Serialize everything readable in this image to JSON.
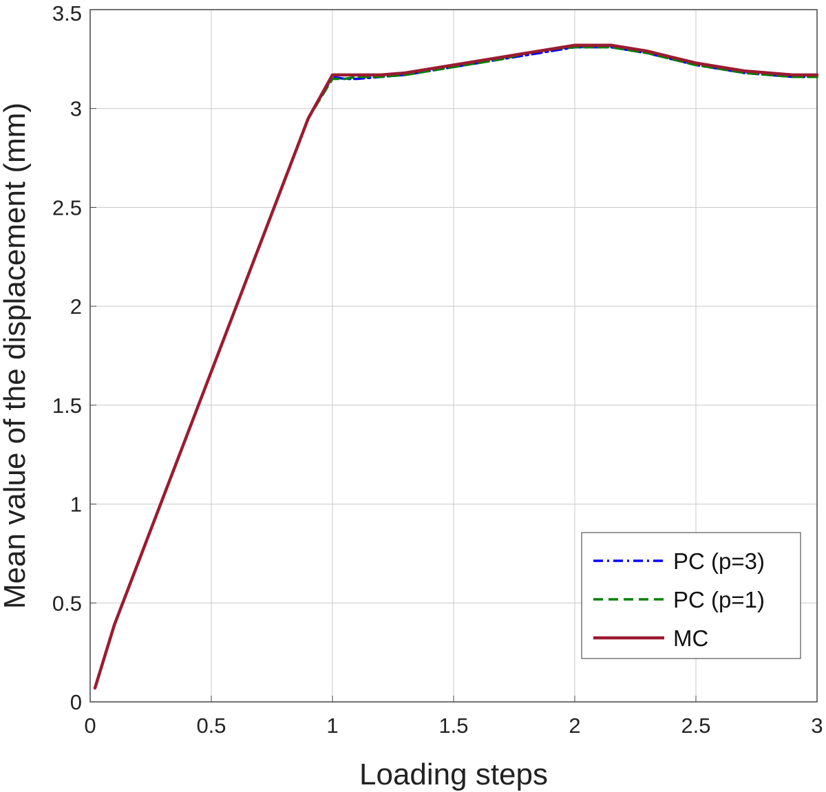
{
  "chart_data": {
    "type": "line",
    "title": "",
    "xlabel": "Loading steps",
    "ylabel": "Mean value of the displacement (mm)",
    "xlim": [
      0,
      3
    ],
    "ylim": [
      0,
      3.5
    ],
    "xticks": [
      "0",
      "0.5",
      "1",
      "1.5",
      "2",
      "2.5",
      "3"
    ],
    "yticks": [
      "0",
      "0.5",
      "1",
      "1.5",
      "2",
      "2.5",
      "3",
      "3.5"
    ],
    "grid": true,
    "legend_position": "bottom-right",
    "series": [
      {
        "name": "PC (p=3)",
        "color": "#0000ff",
        "style": "dashdot",
        "x": [
          0.02,
          0.1,
          0.2,
          0.3,
          0.4,
          0.5,
          0.6,
          0.7,
          0.8,
          0.9,
          1.0,
          1.05,
          1.1,
          1.2,
          1.3,
          1.4,
          1.5,
          1.6,
          1.7,
          1.8,
          1.9,
          2.0,
          2.1,
          2.15,
          2.2,
          2.3,
          2.4,
          2.5,
          2.6,
          2.7,
          2.8,
          2.9,
          3.0
        ],
        "y": [
          0.07,
          0.39,
          0.71,
          1.03,
          1.35,
          1.67,
          1.99,
          2.31,
          2.63,
          2.95,
          3.16,
          3.15,
          3.15,
          3.16,
          3.17,
          3.19,
          3.21,
          3.23,
          3.25,
          3.27,
          3.29,
          3.31,
          3.31,
          3.31,
          3.3,
          3.28,
          3.25,
          3.22,
          3.2,
          3.18,
          3.17,
          3.16,
          3.16
        ]
      },
      {
        "name": "PC (p=1)",
        "color": "#008000",
        "style": "dashed",
        "x": [
          0.02,
          0.1,
          0.2,
          0.3,
          0.4,
          0.5,
          0.6,
          0.7,
          0.8,
          0.9,
          1.0,
          1.05,
          1.1,
          1.2,
          1.3,
          1.4,
          1.5,
          1.6,
          1.7,
          1.8,
          1.9,
          2.0,
          2.1,
          2.15,
          2.2,
          2.3,
          2.4,
          2.5,
          2.6,
          2.7,
          2.8,
          2.9,
          3.0
        ],
        "y": [
          0.07,
          0.39,
          0.71,
          1.03,
          1.35,
          1.67,
          1.99,
          2.31,
          2.63,
          2.95,
          3.15,
          3.15,
          3.16,
          3.16,
          3.17,
          3.19,
          3.21,
          3.23,
          3.25,
          3.28,
          3.3,
          3.31,
          3.31,
          3.31,
          3.3,
          3.28,
          3.25,
          3.22,
          3.2,
          3.18,
          3.17,
          3.16,
          3.16
        ]
      },
      {
        "name": "MC",
        "color": "#9b1b30",
        "style": "solid",
        "x": [
          0.02,
          0.1,
          0.2,
          0.3,
          0.4,
          0.5,
          0.6,
          0.7,
          0.8,
          0.9,
          1.0,
          1.1,
          1.2,
          1.3,
          1.4,
          1.5,
          1.6,
          1.7,
          1.8,
          1.9,
          2.0,
          2.1,
          2.15,
          2.2,
          2.3,
          2.4,
          2.5,
          2.6,
          2.7,
          2.8,
          2.9,
          3.0
        ],
        "y": [
          0.07,
          0.39,
          0.71,
          1.03,
          1.35,
          1.67,
          1.99,
          2.31,
          2.63,
          2.95,
          3.17,
          3.17,
          3.17,
          3.18,
          3.2,
          3.22,
          3.24,
          3.26,
          3.28,
          3.3,
          3.32,
          3.32,
          3.32,
          3.31,
          3.29,
          3.26,
          3.23,
          3.21,
          3.19,
          3.18,
          3.17,
          3.17
        ]
      }
    ]
  }
}
